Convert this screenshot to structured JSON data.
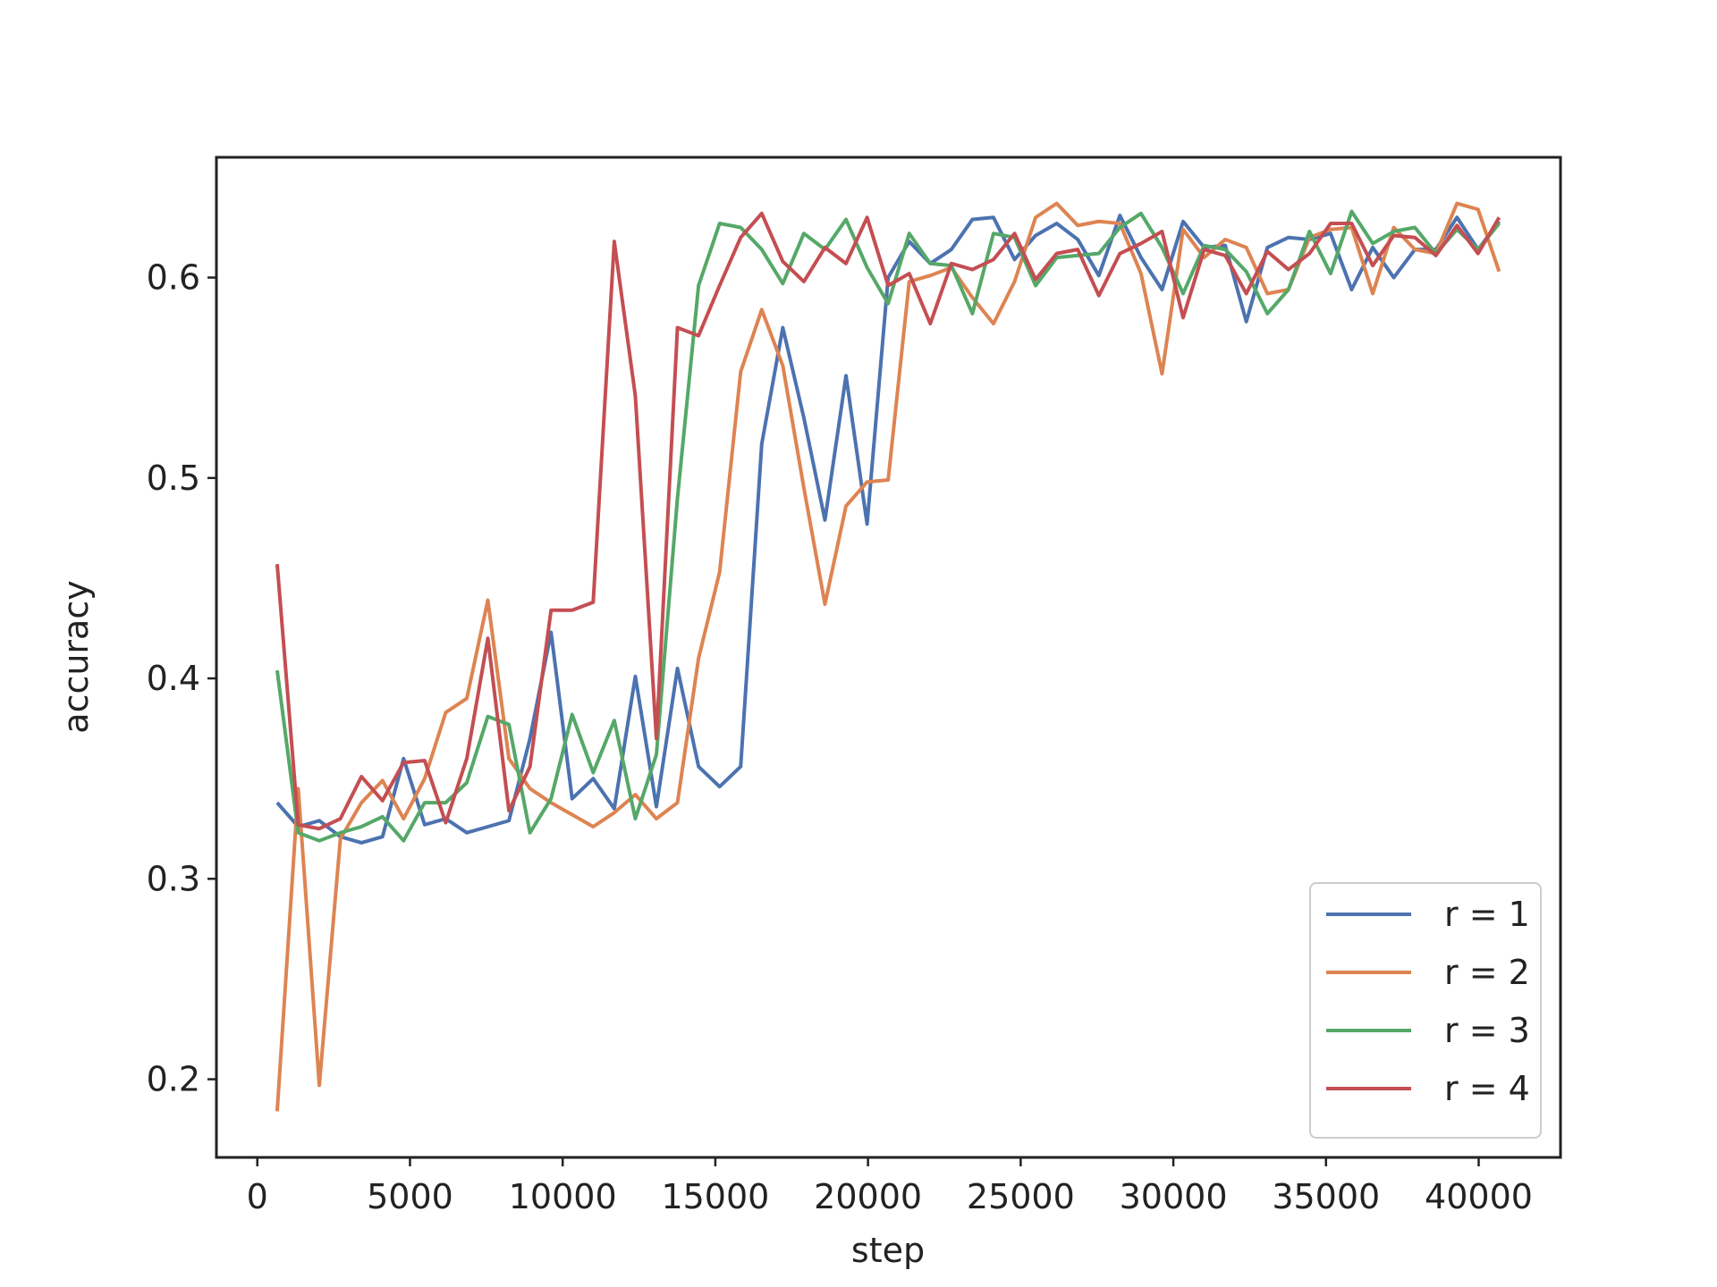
{
  "chart_data": {
    "type": "line",
    "xlabel": "step",
    "ylabel": "accuracy",
    "x": [
      650,
      1340,
      2030,
      2720,
      3410,
      4100,
      4790,
      5480,
      6170,
      6860,
      7550,
      8240,
      8930,
      9620,
      10310,
      11000,
      11690,
      12380,
      13070,
      13760,
      14450,
      15140,
      15830,
      16520,
      17210,
      17900,
      18590,
      19280,
      19970,
      20660,
      21350,
      22040,
      22730,
      23420,
      24110,
      24800,
      25490,
      26180,
      26870,
      27560,
      28250,
      28940,
      29630,
      30320,
      31010,
      31700,
      32390,
      33080,
      33770,
      34460,
      35150,
      35840,
      36530,
      37220,
      37910,
      38600,
      39290,
      39980,
      40670
    ],
    "series": [
      {
        "name": "r = 1",
        "color": "#4c72b0",
        "values": [
          0.338,
          0.326,
          0.329,
          0.321,
          0.318,
          0.321,
          0.36,
          0.327,
          0.33,
          0.323,
          0.326,
          0.329,
          0.37,
          0.423,
          0.34,
          0.35,
          0.335,
          0.401,
          0.336,
          0.405,
          0.356,
          0.346,
          0.356,
          0.517,
          0.575,
          0.53,
          0.479,
          0.551,
          0.477,
          0.6,
          0.618,
          0.607,
          0.614,
          0.629,
          0.63,
          0.609,
          0.621,
          0.627,
          0.619,
          0.601,
          0.631,
          0.61,
          0.594,
          0.628,
          0.615,
          0.616,
          0.578,
          0.615,
          0.62,
          0.619,
          0.622,
          0.594,
          0.615,
          0.6,
          0.614,
          0.614,
          0.63,
          0.614,
          0.628
        ]
      },
      {
        "name": "r = 2",
        "color": "#dd8452",
        "values": [
          0.184,
          0.345,
          0.197,
          0.32,
          0.338,
          0.349,
          0.33,
          0.35,
          0.383,
          0.39,
          0.439,
          0.36,
          0.345,
          0.338,
          0.332,
          0.326,
          0.333,
          0.342,
          0.33,
          0.338,
          0.41,
          0.453,
          0.553,
          0.584,
          0.556,
          0.495,
          0.437,
          0.486,
          0.498,
          0.499,
          0.598,
          0.601,
          0.605,
          0.59,
          0.577,
          0.598,
          0.63,
          0.637,
          0.626,
          0.628,
          0.627,
          0.602,
          0.552,
          0.624,
          0.61,
          0.619,
          0.615,
          0.592,
          0.594,
          0.62,
          0.624,
          0.625,
          0.592,
          0.625,
          0.614,
          0.612,
          0.637,
          0.634,
          0.603
        ]
      },
      {
        "name": "r = 3",
        "color": "#55a868",
        "values": [
          0.404,
          0.323,
          0.319,
          0.323,
          0.326,
          0.331,
          0.319,
          0.338,
          0.338,
          0.348,
          0.381,
          0.377,
          0.323,
          0.34,
          0.382,
          0.353,
          0.379,
          0.33,
          0.362,
          0.49,
          0.596,
          0.627,
          0.625,
          0.614,
          0.597,
          0.622,
          0.614,
          0.629,
          0.605,
          0.587,
          0.622,
          0.607,
          0.606,
          0.582,
          0.622,
          0.62,
          0.596,
          0.61,
          0.611,
          0.612,
          0.625,
          0.632,
          0.615,
          0.592,
          0.616,
          0.614,
          0.603,
          0.582,
          0.594,
          0.623,
          0.602,
          0.633,
          0.617,
          0.623,
          0.625,
          0.612,
          0.624,
          0.614,
          0.627
        ]
      },
      {
        "name": "r = 4",
        "color": "#c44e52",
        "values": [
          0.457,
          0.327,
          0.325,
          0.33,
          0.351,
          0.339,
          0.358,
          0.359,
          0.328,
          0.36,
          0.42,
          0.334,
          0.356,
          0.434,
          0.434,
          0.438,
          0.618,
          0.541,
          0.37,
          0.575,
          0.571,
          0.596,
          0.62,
          0.632,
          0.608,
          0.598,
          0.615,
          0.607,
          0.63,
          0.596,
          0.602,
          0.577,
          0.607,
          0.604,
          0.609,
          0.622,
          0.599,
          0.612,
          0.614,
          0.591,
          0.612,
          0.617,
          0.623,
          0.58,
          0.614,
          0.611,
          0.592,
          0.613,
          0.604,
          0.612,
          0.627,
          0.627,
          0.606,
          0.621,
          0.62,
          0.611,
          0.626,
          0.612,
          0.63
        ]
      }
    ],
    "xlim": [
      -1340,
      42680
    ],
    "xticks": [
      0,
      5000,
      10000,
      15000,
      20000,
      25000,
      30000,
      35000,
      40000
    ],
    "ylim": [
      0.161,
      0.66
    ],
    "yticks": [
      0.2,
      0.3,
      0.4,
      0.5,
      0.6
    ],
    "grid": false,
    "legend": "lower right"
  }
}
